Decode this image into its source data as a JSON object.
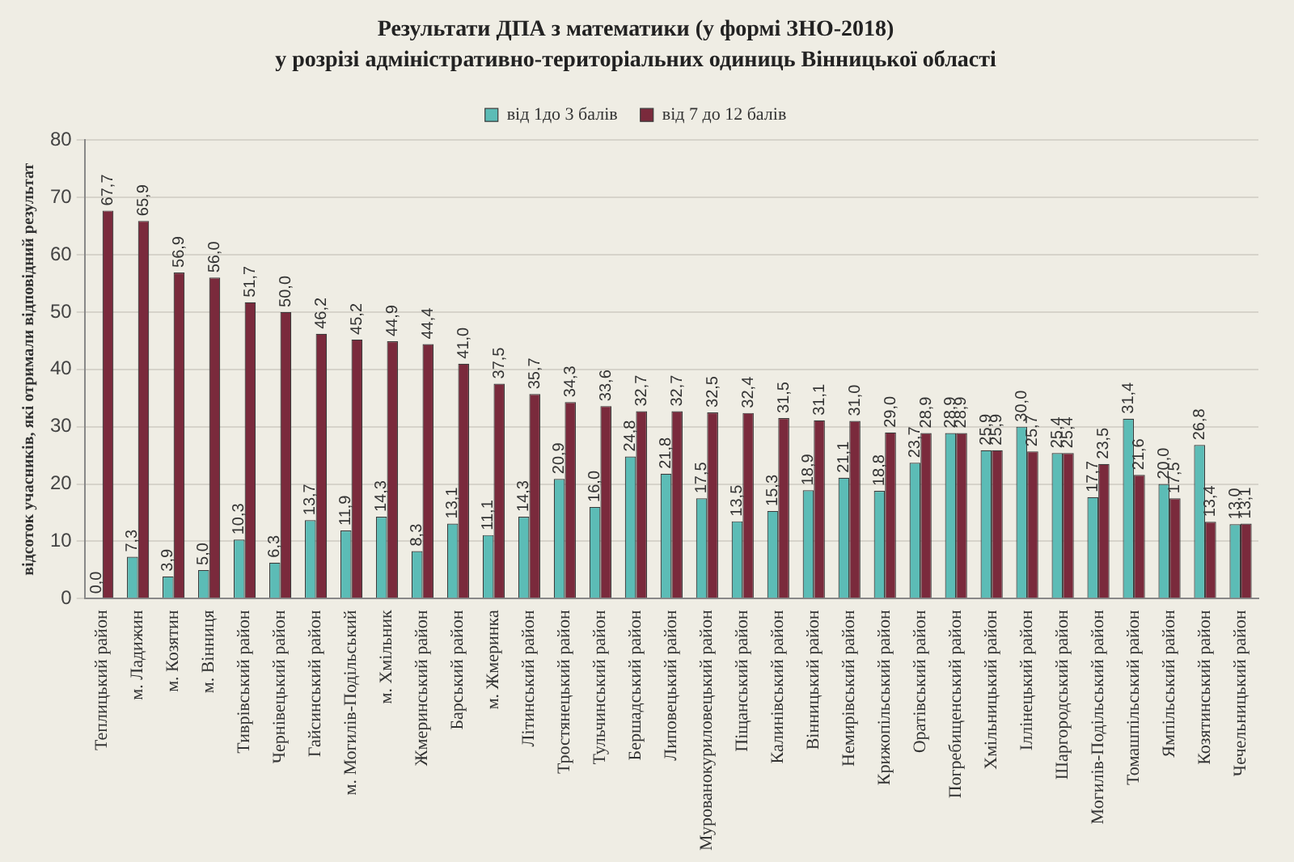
{
  "chart_data": {
    "type": "bar",
    "title": "Результати ДПА з математики (у формі ЗНО-2018)",
    "subtitle": "у розрізі адміністративно-територіальних одиниць Вінницької області",
    "ylabel": "відсоток учасників, які отримали відповідний результат",
    "categories": [
      "Теплицький район",
      "м. Ладижин",
      "м. Козятин",
      "м. Вінниця",
      "Тиврівський район",
      "Чернівецький район",
      "Гайсинський район",
      "м. Могилів-Подільський",
      "м. Хмільник",
      "Жмеринський район",
      "Барський район",
      "м. Жмеринка",
      "Літинський район",
      "Тростянецький район",
      "Тульчинський район",
      "Бершадський район",
      "Липовецький район",
      "Мурованокуриловецький район",
      "Піщанський район",
      "Калинівський район",
      "Вінницький район",
      "Немирівський район",
      "Крижопільський район",
      "Оратівський район",
      "Погребищенський район",
      "Хмільницький район",
      "Іллінецький район",
      "Шаргородський район",
      "Могилів-Подільський район",
      "Томашпільський район",
      "Ямпільський район",
      "Козятинський район",
      "Чечельницький район"
    ],
    "series": [
      {
        "name": "від 1до 3 балів",
        "color": "#5cbcb6",
        "values": [
          0.0,
          7.3,
          3.9,
          5.0,
          10.3,
          6.3,
          13.7,
          11.9,
          14.3,
          8.3,
          13.1,
          11.1,
          14.3,
          20.9,
          16.0,
          24.8,
          21.8,
          17.5,
          13.5,
          15.3,
          18.9,
          21.1,
          18.8,
          23.7,
          28.9,
          25.9,
          30.0,
          25.4,
          17.7,
          31.4,
          20.0,
          26.8,
          13.0
        ],
        "value_labels": [
          "0,0",
          "7,3",
          "3,9",
          "5,0",
          "10,3",
          "6,3",
          "13,7",
          "11,9",
          "14,3",
          "8,3",
          "13,1",
          "11,1",
          "14,3",
          "20,9",
          "16,0",
          "24,8",
          "21,8",
          "17,5",
          "13,5",
          "15,3",
          "18,9",
          "21,1",
          "18,8",
          "23,7",
          "28,9",
          "25,9",
          "30,0",
          "25,4",
          "17,7",
          "31,4",
          "20,0",
          "26,8",
          "13,0"
        ]
      },
      {
        "name": "від 7 до 12 балів",
        "color": "#7a2a3c",
        "values": [
          67.7,
          65.9,
          56.9,
          56.0,
          51.7,
          50.0,
          46.2,
          45.2,
          44.9,
          44.4,
          41.0,
          37.5,
          35.7,
          34.3,
          33.6,
          32.7,
          32.7,
          32.5,
          32.4,
          31.5,
          31.1,
          31.0,
          29.0,
          28.9,
          28.9,
          25.9,
          25.7,
          25.4,
          23.5,
          21.6,
          17.5,
          13.4,
          13.1
        ],
        "value_labels": [
          "67,7",
          "65,9",
          "56,9",
          "56,0",
          "51,7",
          "50,0",
          "46,2",
          "45,2",
          "44,9",
          "44,4",
          "41,0",
          "37,5",
          "35,7",
          "34,3",
          "33,6",
          "32,7",
          "32,7",
          "32,5",
          "32,4",
          "31,5",
          "31,1",
          "31,0",
          "29,0",
          "28,9",
          "28,9",
          "25,9",
          "25,7",
          "25,4",
          "23,5",
          "21,6",
          "17,5",
          "13,4",
          "13,1"
        ]
      }
    ],
    "ylim": [
      0,
      80
    ],
    "yticks": [
      0,
      10,
      20,
      30,
      40,
      50,
      60,
      70,
      80
    ],
    "grid": "y",
    "legend": "top"
  }
}
